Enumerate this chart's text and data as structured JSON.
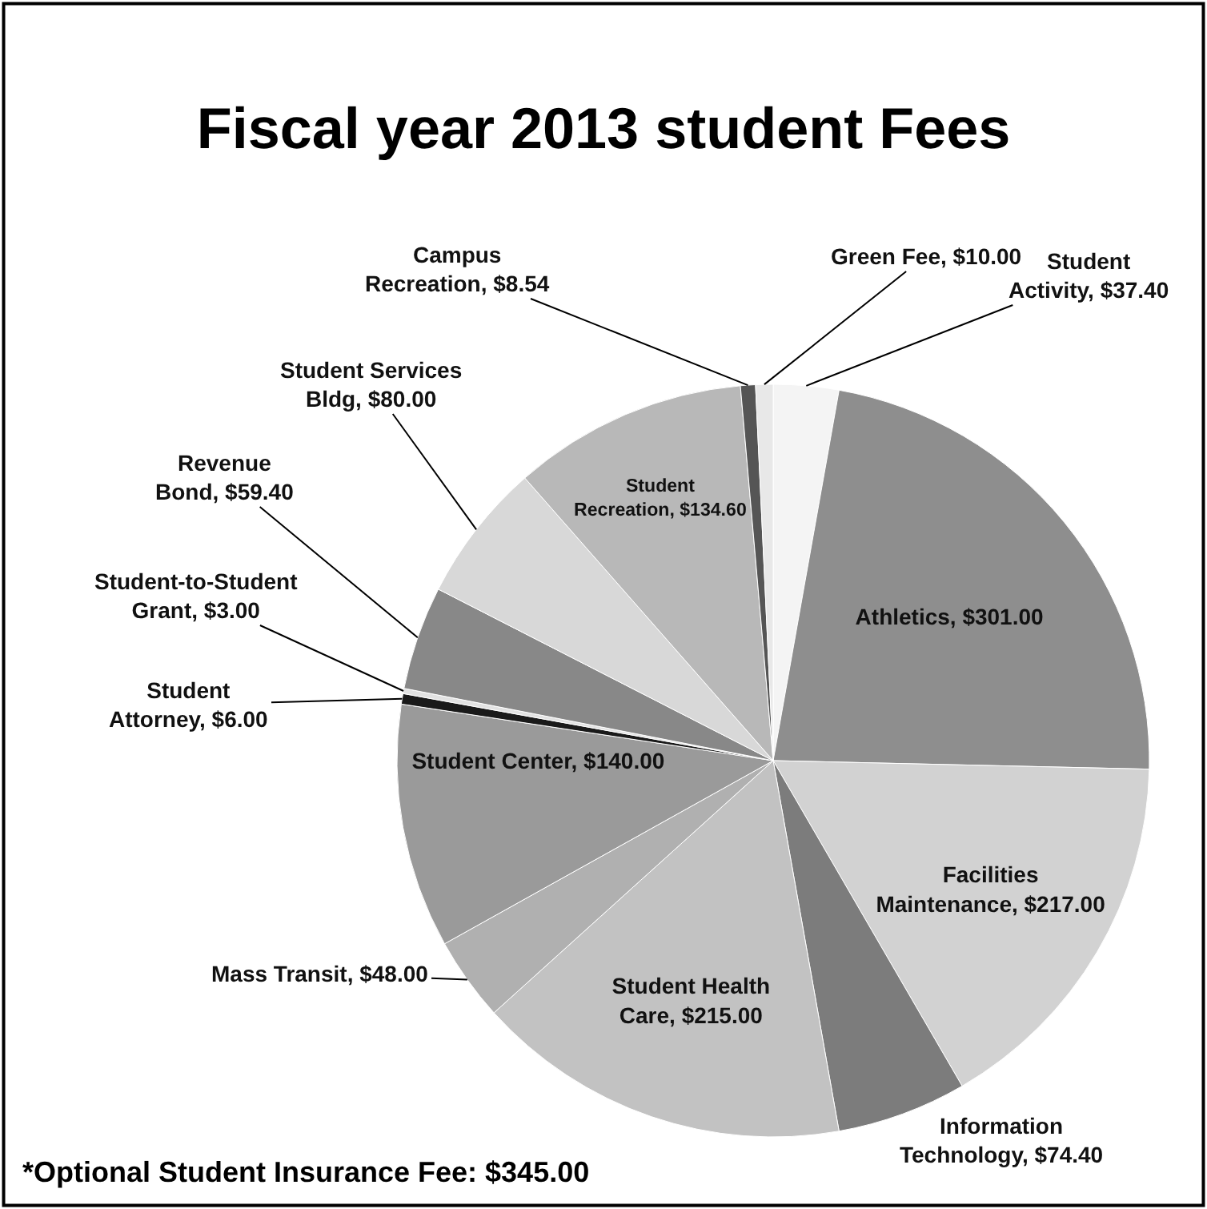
{
  "chart_data": {
    "type": "pie",
    "title": "Fiscal year 2013 student Fees",
    "categories": [
      "Student Activity",
      "Athletics",
      "Facilities Maintenance",
      "Information Technology",
      "Student Health Care",
      "Mass Transit",
      "Student Center",
      "Student Attorney",
      "Student-to-Student Grant",
      "Revenue Bond",
      "Student Services Bldg",
      "Student Recreation",
      "Campus Recreation",
      "Green Fee"
    ],
    "values": [
      37.4,
      301.0,
      217.0,
      74.4,
      215.0,
      48.0,
      140.0,
      6.0,
      3.0,
      59.4,
      80.0,
      134.6,
      8.54,
      10.0
    ],
    "value_labels": [
      "$37.40",
      "$301.00",
      "$217.00",
      "$74.40",
      "$215.00",
      "$48.00",
      "$140.00",
      "$6.00",
      "$3.00",
      "$59.40",
      "$80.00",
      "$134.60",
      "$8.54",
      "$10.00"
    ],
    "colors": [
      "#f4f4f4",
      "#8e8e8e",
      "#d2d2d2",
      "#7c7c7c",
      "#c2c2c2",
      "#b0b0b0",
      "#9a9a9a",
      "#1a1a1a",
      "#e2e2e2",
      "#888888",
      "#d8d8d8",
      "#b8b8b8",
      "#555555",
      "#e8e8e8"
    ],
    "legend": false,
    "annotations": [
      "*Optional Student Insurance Fee: $345.00"
    ]
  }
}
